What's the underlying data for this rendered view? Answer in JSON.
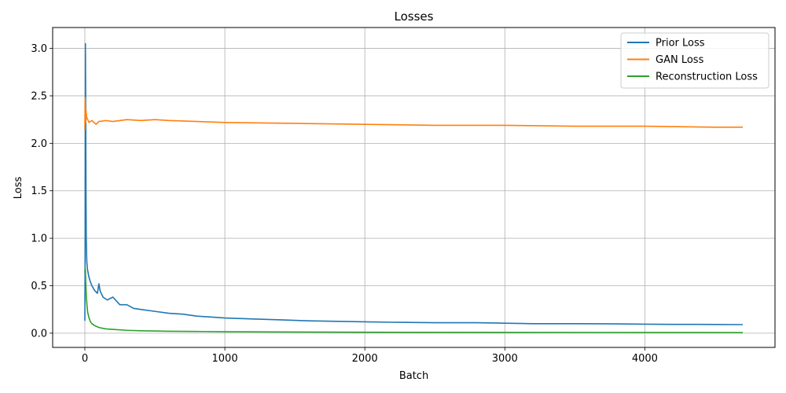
{
  "chart_data": {
    "type": "line",
    "title": "Losses",
    "xlabel": "Batch",
    "ylabel": "Loss",
    "xlim": [
      -230,
      4930
    ],
    "ylim": [
      -0.15,
      3.22
    ],
    "xticks": [
      0,
      1000,
      2000,
      3000,
      4000
    ],
    "xtick_labels": [
      "0",
      "1000",
      "2000",
      "3000",
      "4000"
    ],
    "yticks": [
      0.0,
      0.5,
      1.0,
      1.5,
      2.0,
      2.5,
      3.0
    ],
    "ytick_labels": [
      "0.0",
      "0.5",
      "1.0",
      "1.5",
      "2.0",
      "2.5",
      "3.0"
    ],
    "grid": true,
    "legend_position": "top-right",
    "series": [
      {
        "name": "Prior Loss",
        "color": "#1f77b4",
        "x": [
          0,
          2,
          4,
          6,
          8,
          10,
          12,
          14,
          18,
          25,
          35,
          50,
          70,
          90,
          100,
          110,
          130,
          160,
          200,
          250,
          300,
          350,
          400,
          500,
          600,
          700,
          800,
          900,
          1000,
          1200,
          1400,
          1600,
          1800,
          2000,
          2200,
          2500,
          2800,
          3000,
          3200,
          3500,
          3800,
          4000,
          4200,
          4500,
          4700
        ],
        "y": [
          0.13,
          0.95,
          3.05,
          2.4,
          1.5,
          1.0,
          0.85,
          0.75,
          0.68,
          0.62,
          0.56,
          0.5,
          0.45,
          0.42,
          0.52,
          0.44,
          0.38,
          0.35,
          0.38,
          0.3,
          0.3,
          0.26,
          0.25,
          0.23,
          0.21,
          0.2,
          0.18,
          0.17,
          0.16,
          0.15,
          0.14,
          0.13,
          0.125,
          0.12,
          0.115,
          0.11,
          0.11,
          0.105,
          0.1,
          0.1,
          0.098,
          0.095,
          0.093,
          0.092,
          0.09
        ]
      },
      {
        "name": "GAN Loss",
        "color": "#ff7f0e",
        "x": [
          0,
          2,
          4,
          6,
          8,
          12,
          20,
          30,
          50,
          80,
          100,
          150,
          200,
          300,
          400,
          500,
          600,
          800,
          1000,
          1500,
          2000,
          2500,
          3000,
          3500,
          4000,
          4500,
          4700
        ],
        "y": [
          2.14,
          2.48,
          2.3,
          2.22,
          2.35,
          2.28,
          2.25,
          2.22,
          2.24,
          2.2,
          2.23,
          2.24,
          2.23,
          2.25,
          2.24,
          2.25,
          2.24,
          2.23,
          2.22,
          2.21,
          2.2,
          2.19,
          2.19,
          2.18,
          2.18,
          2.17,
          2.17
        ]
      },
      {
        "name": "Reconstruction Loss",
        "color": "#2ca02c",
        "x": [
          0,
          2,
          4,
          6,
          10,
          15,
          20,
          30,
          40,
          50,
          70,
          100,
          150,
          200,
          300,
          400,
          600,
          800,
          1000,
          1500,
          2000,
          3000,
          4000,
          4700
        ],
        "y": [
          0.64,
          0.68,
          0.66,
          0.55,
          0.4,
          0.3,
          0.22,
          0.16,
          0.12,
          0.1,
          0.08,
          0.06,
          0.045,
          0.04,
          0.03,
          0.025,
          0.02,
          0.018,
          0.015,
          0.012,
          0.01,
          0.008,
          0.007,
          0.006
        ]
      }
    ]
  }
}
